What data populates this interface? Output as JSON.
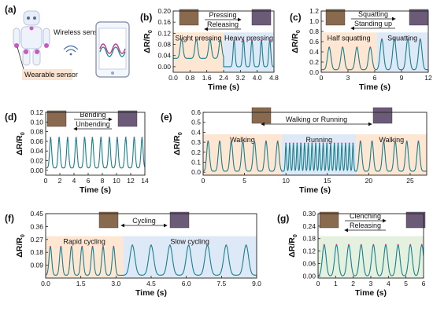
{
  "colors": {
    "line": "#1a7f8f",
    "peak": "#c0398a",
    "region_orange": "#fde7d3",
    "region_blue": "#dde9f6",
    "region_green": "#e3f1de",
    "axis": "#222222",
    "sensor_label_bg": "#fbe3cf"
  },
  "panel_a": {
    "label": "(a)",
    "wireless_text": "Wireless sensing",
    "sensor_text": "Wearable sensor",
    "icons": [
      "humanoid-robot-icon",
      "wifi-signal-icon",
      "smartphone-icon"
    ]
  },
  "chart_data": [
    {
      "id": "b",
      "panel_label": "(b)",
      "type": "line",
      "xlabel": "Time (s)",
      "ylabel": "ΔR/R",
      "xlim": [
        0,
        4.8
      ],
      "ylim": [
        -0.02,
        0.2
      ],
      "xticks": [
        "0.0",
        "0.8",
        "1.6",
        "2.4",
        "3.2",
        "4.0",
        "4.8"
      ],
      "yticks": [
        "0.00",
        "0.04",
        "0.08",
        "0.12",
        "0.16",
        "0.20"
      ],
      "annotations": [
        "Pressing",
        "Releasing"
      ],
      "regions": [
        {
          "label": "Slight pressing",
          "x0": 0,
          "x1": 2.4,
          "color": "orange"
        },
        {
          "label": "Heavy pressing",
          "x0": 2.4,
          "x1": 4.8,
          "color": "blue"
        }
      ],
      "segments": [
        {
          "x0": 0.0,
          "x1": 2.4,
          "peaks": [
            0.4,
            1.1,
            1.75,
            2.25
          ],
          "amp": 0.068,
          "base": 0.03,
          "w": 0.14
        },
        {
          "x0": 2.4,
          "x1": 4.8,
          "peaks": [
            2.9,
            3.35,
            3.75,
            4.2,
            4.6
          ],
          "amp": 0.095,
          "base": 0.0,
          "w": 0.1
        }
      ]
    },
    {
      "id": "c",
      "panel_label": "(c)",
      "type": "line",
      "xlabel": "Time (s)",
      "ylabel": "ΔR/R",
      "xlim": [
        0,
        12
      ],
      "ylim": [
        0,
        1.2
      ],
      "xticks": [
        "0",
        "3",
        "6",
        "9",
        "12"
      ],
      "yticks": [
        "0.0",
        "0.2",
        "0.4",
        "0.6",
        "0.8",
        "1.0",
        "1.2"
      ],
      "annotations": [
        "Squatting",
        "Standing up"
      ],
      "regions": [
        {
          "label": "Half squatting",
          "x0": 0,
          "x1": 6.2,
          "color": "orange"
        },
        {
          "label": "Squatting",
          "x0": 6.2,
          "x1": 12,
          "color": "blue"
        }
      ],
      "segments": [
        {
          "x0": 0,
          "x1": 6.2,
          "peaks": [
            0.9,
            2.4,
            4.0,
            5.5
          ],
          "amp": 0.44,
          "base": 0.05,
          "w": 0.4
        },
        {
          "x0": 6.2,
          "x1": 12,
          "peaks": [
            6.8,
            8.2,
            9.7,
            11.1
          ],
          "amp": 0.6,
          "base": 0.05,
          "w": 0.4
        }
      ]
    },
    {
      "id": "d",
      "panel_label": "(d)",
      "type": "line",
      "xlabel": "Time (s)",
      "ylabel": "ΔR/R",
      "xlim": [
        0,
        14
      ],
      "ylim": [
        -0.01,
        0.12
      ],
      "xticks": [
        "0",
        "2",
        "4",
        "6",
        "8",
        "10",
        "12",
        "14"
      ],
      "yticks": [
        "0.00",
        "0.02",
        "0.04",
        "0.06",
        "0.08",
        "0.10",
        "0.12"
      ],
      "annotations": [
        "Bending",
        "Unbending"
      ],
      "regions": [],
      "segments": [
        {
          "x0": 0,
          "x1": 14,
          "peaks": [
            0.7,
            1.9,
            3.1,
            4.3,
            5.5,
            6.6,
            7.8,
            9.0,
            10.1,
            11.3,
            12.5,
            13.6
          ],
          "amp": 0.063,
          "base": 0.005,
          "w": 0.3
        }
      ]
    },
    {
      "id": "e",
      "panel_label": "(e)",
      "type": "line",
      "xlabel": "Time (s)",
      "ylabel": "ΔR/R",
      "xlim": [
        0,
        27
      ],
      "ylim": [
        -0.03,
        0.6
      ],
      "xticks": [
        "0",
        "5",
        "10",
        "15",
        "20",
        "25"
      ],
      "yticks": [
        "0.0",
        "0.1",
        "0.2",
        "0.3",
        "0.4",
        "0.5",
        "0.6"
      ],
      "annotations": [
        "Walking or Running"
      ],
      "regions": [
        {
          "label": "Walking",
          "x0": 0,
          "x1": 9.5,
          "color": "orange"
        },
        {
          "label": "Running",
          "x0": 9.5,
          "x1": 18.5,
          "color": "blue"
        },
        {
          "label": "Walking",
          "x0": 18.5,
          "x1": 27,
          "color": "orange"
        }
      ],
      "segments": [
        {
          "x0": 0,
          "x1": 9.5,
          "peaks": [
            0.6,
            2.0,
            3.4,
            4.8,
            6.2,
            7.6,
            9.0
          ],
          "amp": 0.3,
          "base": 0.01,
          "w": 0.35
        },
        {
          "x0": 9.5,
          "x1": 18.5,
          "peaks": [
            10.0,
            10.45,
            10.9,
            11.35,
            11.8,
            12.25,
            12.7,
            13.15,
            13.6,
            14.05,
            14.5,
            14.95,
            15.4,
            15.85,
            16.3,
            16.75,
            17.2,
            17.65,
            18.1
          ],
          "amp": 0.28,
          "base": 0.01,
          "w": 0.16
        },
        {
          "x0": 18.5,
          "x1": 27,
          "peaks": [
            19.0,
            20.4,
            21.8,
            23.2,
            24.6,
            26.0
          ],
          "amp": 0.3,
          "base": 0.01,
          "w": 0.35
        }
      ]
    },
    {
      "id": "f",
      "panel_label": "(f)",
      "type": "line",
      "xlabel": "Time (s)",
      "ylabel": "ΔR/R",
      "xlim": [
        0,
        9
      ],
      "ylim": [
        0,
        0.45
      ],
      "xticks": [
        "0.0",
        "1.5",
        "3.0",
        "4.5",
        "6.0",
        "7.5",
        "9.0"
      ],
      "yticks": [
        "0.09",
        "0.18",
        "0.27",
        "0.36",
        "0.45"
      ],
      "annotations": [
        "Cycling"
      ],
      "regions": [
        {
          "label": "Rapid cycling",
          "x0": 0,
          "x1": 3.3,
          "color": "orange"
        },
        {
          "label": "Slow cycling",
          "x0": 3.3,
          "x1": 9,
          "color": "blue"
        }
      ],
      "segments": [
        {
          "x0": 0,
          "x1": 3.3,
          "peaks": [
            0.2,
            0.65,
            1.1,
            1.55,
            2.0,
            2.45,
            2.9
          ],
          "amp": 0.2,
          "base": 0.02,
          "w": 0.12
        },
        {
          "x0": 3.3,
          "x1": 9,
          "peaks": [
            3.7,
            4.5,
            5.3,
            6.1,
            6.9,
            7.7,
            8.55
          ],
          "amp": 0.21,
          "base": 0.02,
          "w": 0.22
        }
      ]
    },
    {
      "id": "g",
      "panel_label": "(g)",
      "type": "line",
      "xlabel": "Time (s)",
      "ylabel": "ΔR/R",
      "xlim": [
        0,
        6
      ],
      "ylim": [
        -0.01,
        0.3
      ],
      "xticks": [
        "0",
        "1",
        "2",
        "3",
        "4",
        "5",
        "6"
      ],
      "yticks": [
        "0.00",
        "0.06",
        "0.12",
        "0.18",
        "0.24",
        "0.30"
      ],
      "annotations": [
        "Clenching",
        "Releasing"
      ],
      "regions": [
        {
          "label": "",
          "x0": 0,
          "x1": 6,
          "color": "green"
        }
      ],
      "segments": [
        {
          "x0": 0,
          "x1": 6,
          "peaks": [
            0.35,
            1.05,
            1.75,
            2.45,
            3.15,
            3.85,
            4.55,
            5.25,
            5.9
          ],
          "amp": 0.15,
          "base": 0.0,
          "w": 0.22
        }
      ]
    }
  ]
}
